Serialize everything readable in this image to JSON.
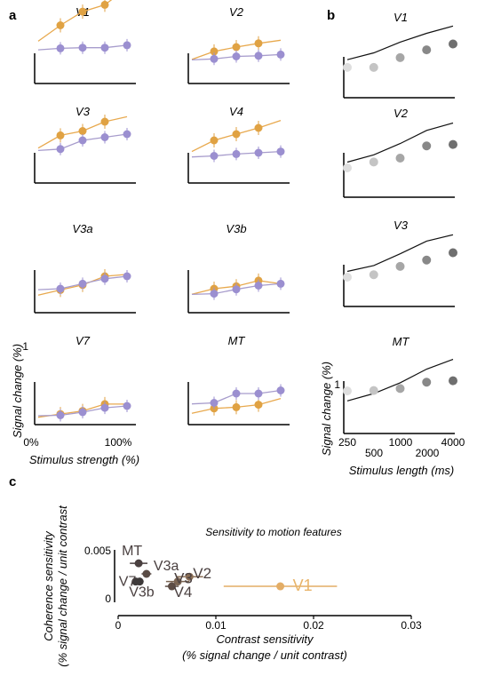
{
  "panel_letters": {
    "a": "a",
    "b": "b",
    "c": "c"
  },
  "colors": {
    "coherence": "#e0a243",
    "contrast": "#9b8fd0",
    "model": "#111111",
    "fit_coherence": "#e8a94e",
    "fit_contrast": "#a79ccc",
    "length_fills": [
      "#dedede",
      "#c4c4c4",
      "#a6a6a6",
      "#888888",
      "#6f6f6f"
    ],
    "c_points": {
      "V1": "#e3ad66",
      "V2": "#8a6e55",
      "V3": "#7a6452",
      "V4": "#5c4c44",
      "V3a": "#5a4c46",
      "V3b": "#3e3a3a",
      "V7": "#3e3a3a",
      "MT": "#4a4040",
      "label_V1": "#e8b46a",
      "label_dark": "#4a4040"
    }
  },
  "chart_data": [
    {
      "panel": "a",
      "type": "scatter",
      "ylabel": "Signal change (%)",
      "xlabel": "Stimulus strength (%)",
      "xticks": [
        "0%",
        "100%"
      ],
      "yticks": [
        "1"
      ],
      "areas": [
        {
          "title": "V1",
          "x": [
            25,
            50,
            75,
            100
          ],
          "coherence": [
            0.85,
            1.07,
            1.18,
            1.45
          ],
          "contrast": [
            0.48,
            0.49,
            0.49,
            0.53
          ]
        },
        {
          "title": "V2",
          "x": [
            25,
            50,
            75,
            100
          ],
          "coherence": [
            0.43,
            0.5,
            0.56,
            0.61
          ],
          "contrast": [
            0.31,
            0.35,
            0.36,
            0.38
          ]
        },
        {
          "title": "V3",
          "x": [
            25,
            50,
            75,
            100
          ],
          "coherence": [
            0.68,
            0.75,
            0.9,
            0.98
          ],
          "contrast": [
            0.46,
            0.6,
            0.65,
            0.7
          ]
        },
        {
          "title": "V4",
          "x": [
            25,
            50,
            75,
            100
          ],
          "coherence": [
            0.6,
            0.7,
            0.8,
            0.92
          ],
          "contrast": [
            0.35,
            0.38,
            0.4,
            0.42
          ]
        },
        {
          "title": "V3a",
          "x": [
            25,
            50,
            75,
            100
          ],
          "coherence": [
            0.28,
            0.36,
            0.5,
            0.53
          ],
          "contrast": [
            0.3,
            0.38,
            0.46,
            0.5
          ]
        },
        {
          "title": "V3b",
          "x": [
            25,
            50,
            75,
            100
          ],
          "coherence": [
            0.3,
            0.34,
            0.43,
            0.38
          ],
          "contrast": [
            0.22,
            0.29,
            0.35,
            0.38
          ]
        },
        {
          "title": "V7",
          "x": [
            25,
            50,
            75,
            100
          ],
          "coherence": [
            0.17,
            0.22,
            0.33,
            0.33
          ],
          "contrast": [
            0.15,
            0.2,
            0.27,
            0.3
          ]
        },
        {
          "title": "MT",
          "x": [
            25,
            50,
            75,
            100
          ],
          "coherence": [
            0.26,
            0.28,
            0.32,
            0.42
          ],
          "contrast": [
            0.35,
            0.5,
            0.5,
            0.55
          ]
        }
      ]
    },
    {
      "panel": "b",
      "type": "scatter",
      "ylabel": "Signal change (%)",
      "xlabel": "Stimulus length (ms)",
      "xscale": "log",
      "xticks": [
        250,
        500,
        1000,
        2000,
        4000
      ],
      "yticks": [
        "1"
      ],
      "areas": [
        {
          "title": "V1",
          "x": [
            250,
            500,
            1000,
            2000,
            4000
          ],
          "y": [
            0.62,
            0.62,
            0.82,
            0.98,
            1.1
          ],
          "model": [
            0.56,
            0.7,
            0.92,
            1.1,
            1.25
          ]
        },
        {
          "title": "V2",
          "x": [
            250,
            500,
            1000,
            2000,
            4000
          ],
          "y": [
            0.6,
            0.72,
            0.8,
            1.05,
            1.08
          ],
          "model": [
            0.5,
            0.65,
            0.88,
            1.15,
            1.3
          ]
        },
        {
          "title": "V3",
          "x": [
            250,
            500,
            1000,
            2000,
            4000
          ],
          "y": [
            0.6,
            0.65,
            0.82,
            0.95,
            1.1
          ],
          "model": [
            0.5,
            0.62,
            0.86,
            1.12,
            1.25
          ]
        },
        {
          "title": "MT",
          "x": [
            250,
            500,
            1000,
            2000,
            4000
          ],
          "y": [
            0.87,
            0.88,
            0.92,
            1.05,
            1.08
          ],
          "model": [
            0.45,
            0.6,
            0.82,
            1.1,
            1.3
          ]
        }
      ]
    },
    {
      "panel": "c",
      "type": "scatter",
      "title": "Sensitivity to motion features",
      "xlabel": "Contrast sensitivity",
      "xlabel2": "(% signal change / unit contrast)",
      "ylabel": "Coherence sensitivity",
      "ylabel2": "(% signal change / unit contrast",
      "xlim": [
        0,
        0.03
      ],
      "ylim": [
        0,
        0.005
      ],
      "xticks": [
        "0",
        "0.01",
        "0.02",
        "0.03"
      ],
      "yticks": [
        "0",
        "0.005"
      ],
      "points": [
        {
          "name": "V1",
          "x": 0.0166,
          "y": 0.0012,
          "xerr": 0.0058
        },
        {
          "name": "V2",
          "x": 0.0073,
          "y": 0.0022,
          "xerr": 0.0014
        },
        {
          "name": "V3",
          "x": 0.0061,
          "y": 0.0017,
          "xerr": 0.0012
        },
        {
          "name": "V4",
          "x": 0.0055,
          "y": 0.0012,
          "xerr": 0.0007
        },
        {
          "name": "V3a",
          "x": 0.0029,
          "y": 0.0025,
          "xerr": 0.0005
        },
        {
          "name": "V3b",
          "x": 0.0022,
          "y": 0.0017,
          "xerr": 0.0004
        },
        {
          "name": "V7",
          "x": 0.0018,
          "y": 0.0017,
          "xerr": 0.0004
        },
        {
          "name": "MT",
          "x": 0.0021,
          "y": 0.0036,
          "xerr": 0.0009
        }
      ]
    }
  ]
}
